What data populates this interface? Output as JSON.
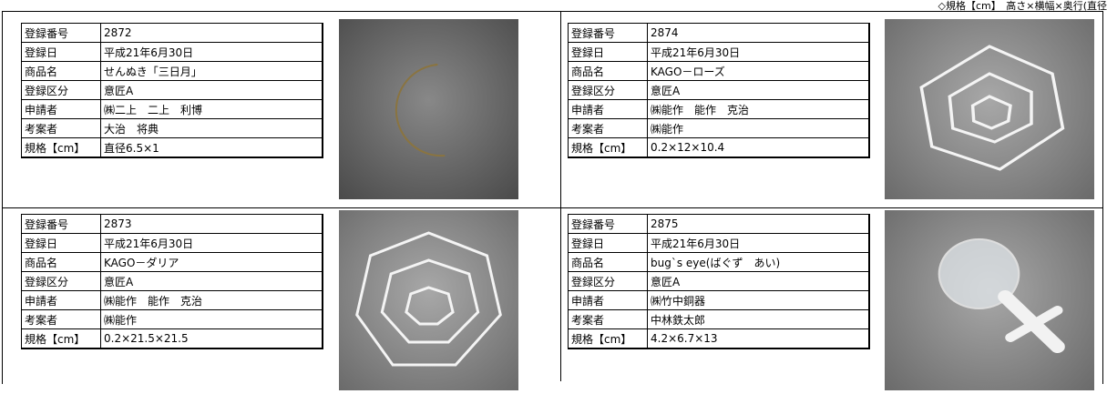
{
  "note": "◇規格【cm】　高さ×横幅×奥行(直径",
  "labels": [
    "登録番号",
    "登録日",
    "商品名",
    "登録区分",
    "申請者",
    "考案者",
    "規格【cm】"
  ],
  "items": [
    [
      "2872",
      "平成21年6月30日",
      "せんぬき「三日月」",
      "意匠A",
      "㈱二上　二上　利博",
      "大治　将典",
      "直径6.5×1"
    ],
    [
      "2874",
      "平成21年6月30日",
      "KAGO－ローズ",
      "意匠A",
      "㈱能作　能作　克治",
      "㈱能作",
      "0.2×12×10.4"
    ],
    [
      "2873",
      "平成21年6月30日",
      "KAGO－ダリア",
      "意匠A",
      "㈱能作　能作　克治",
      "㈱能作",
      "0.2×21.5×21.5"
    ],
    [
      "2875",
      "平成21年6月30日",
      "bug`s eye(ばぐず　あい)",
      "意匠A",
      "㈱竹中銅器",
      "中林鉄太郎",
      "4.2×6.7×13"
    ]
  ]
}
